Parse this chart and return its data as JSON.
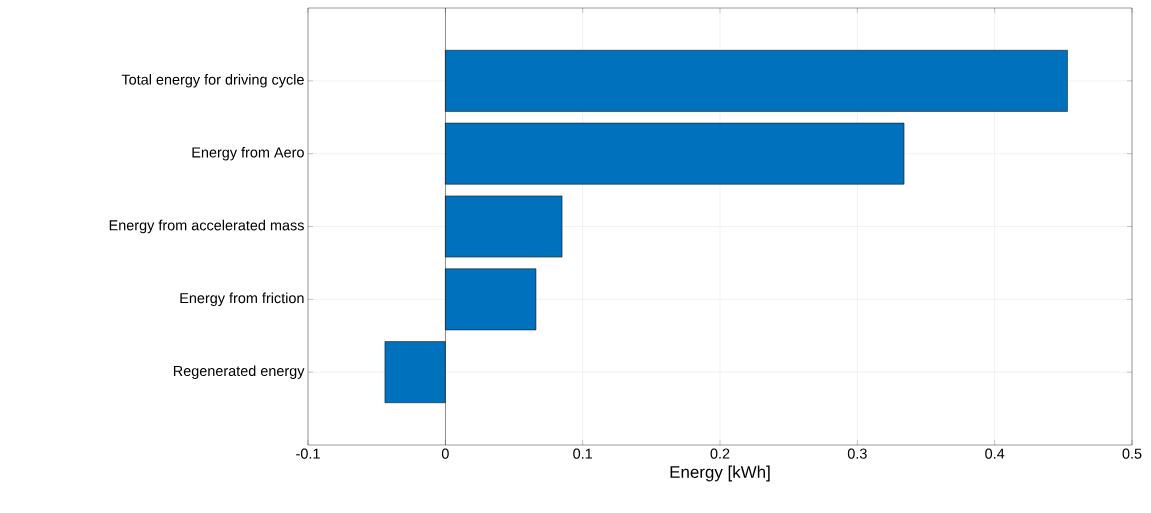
{
  "chart_data": {
    "type": "bar",
    "orientation": "horizontal",
    "xlabel": "Energy [kWh]",
    "categories": [
      "Total energy for driving cycle",
      "Energy from Aero",
      "Energy from accelerated mass",
      "Energy from friction",
      "Regenerated energy"
    ],
    "values": [
      0.453,
      0.334,
      0.085,
      0.066,
      -0.044
    ],
    "color": "#0072bd",
    "xlim": [
      -0.1,
      0.5
    ],
    "xticks": [
      -0.1,
      0,
      0.1,
      0.2,
      0.3,
      0.4,
      0.5
    ],
    "grid": true
  }
}
